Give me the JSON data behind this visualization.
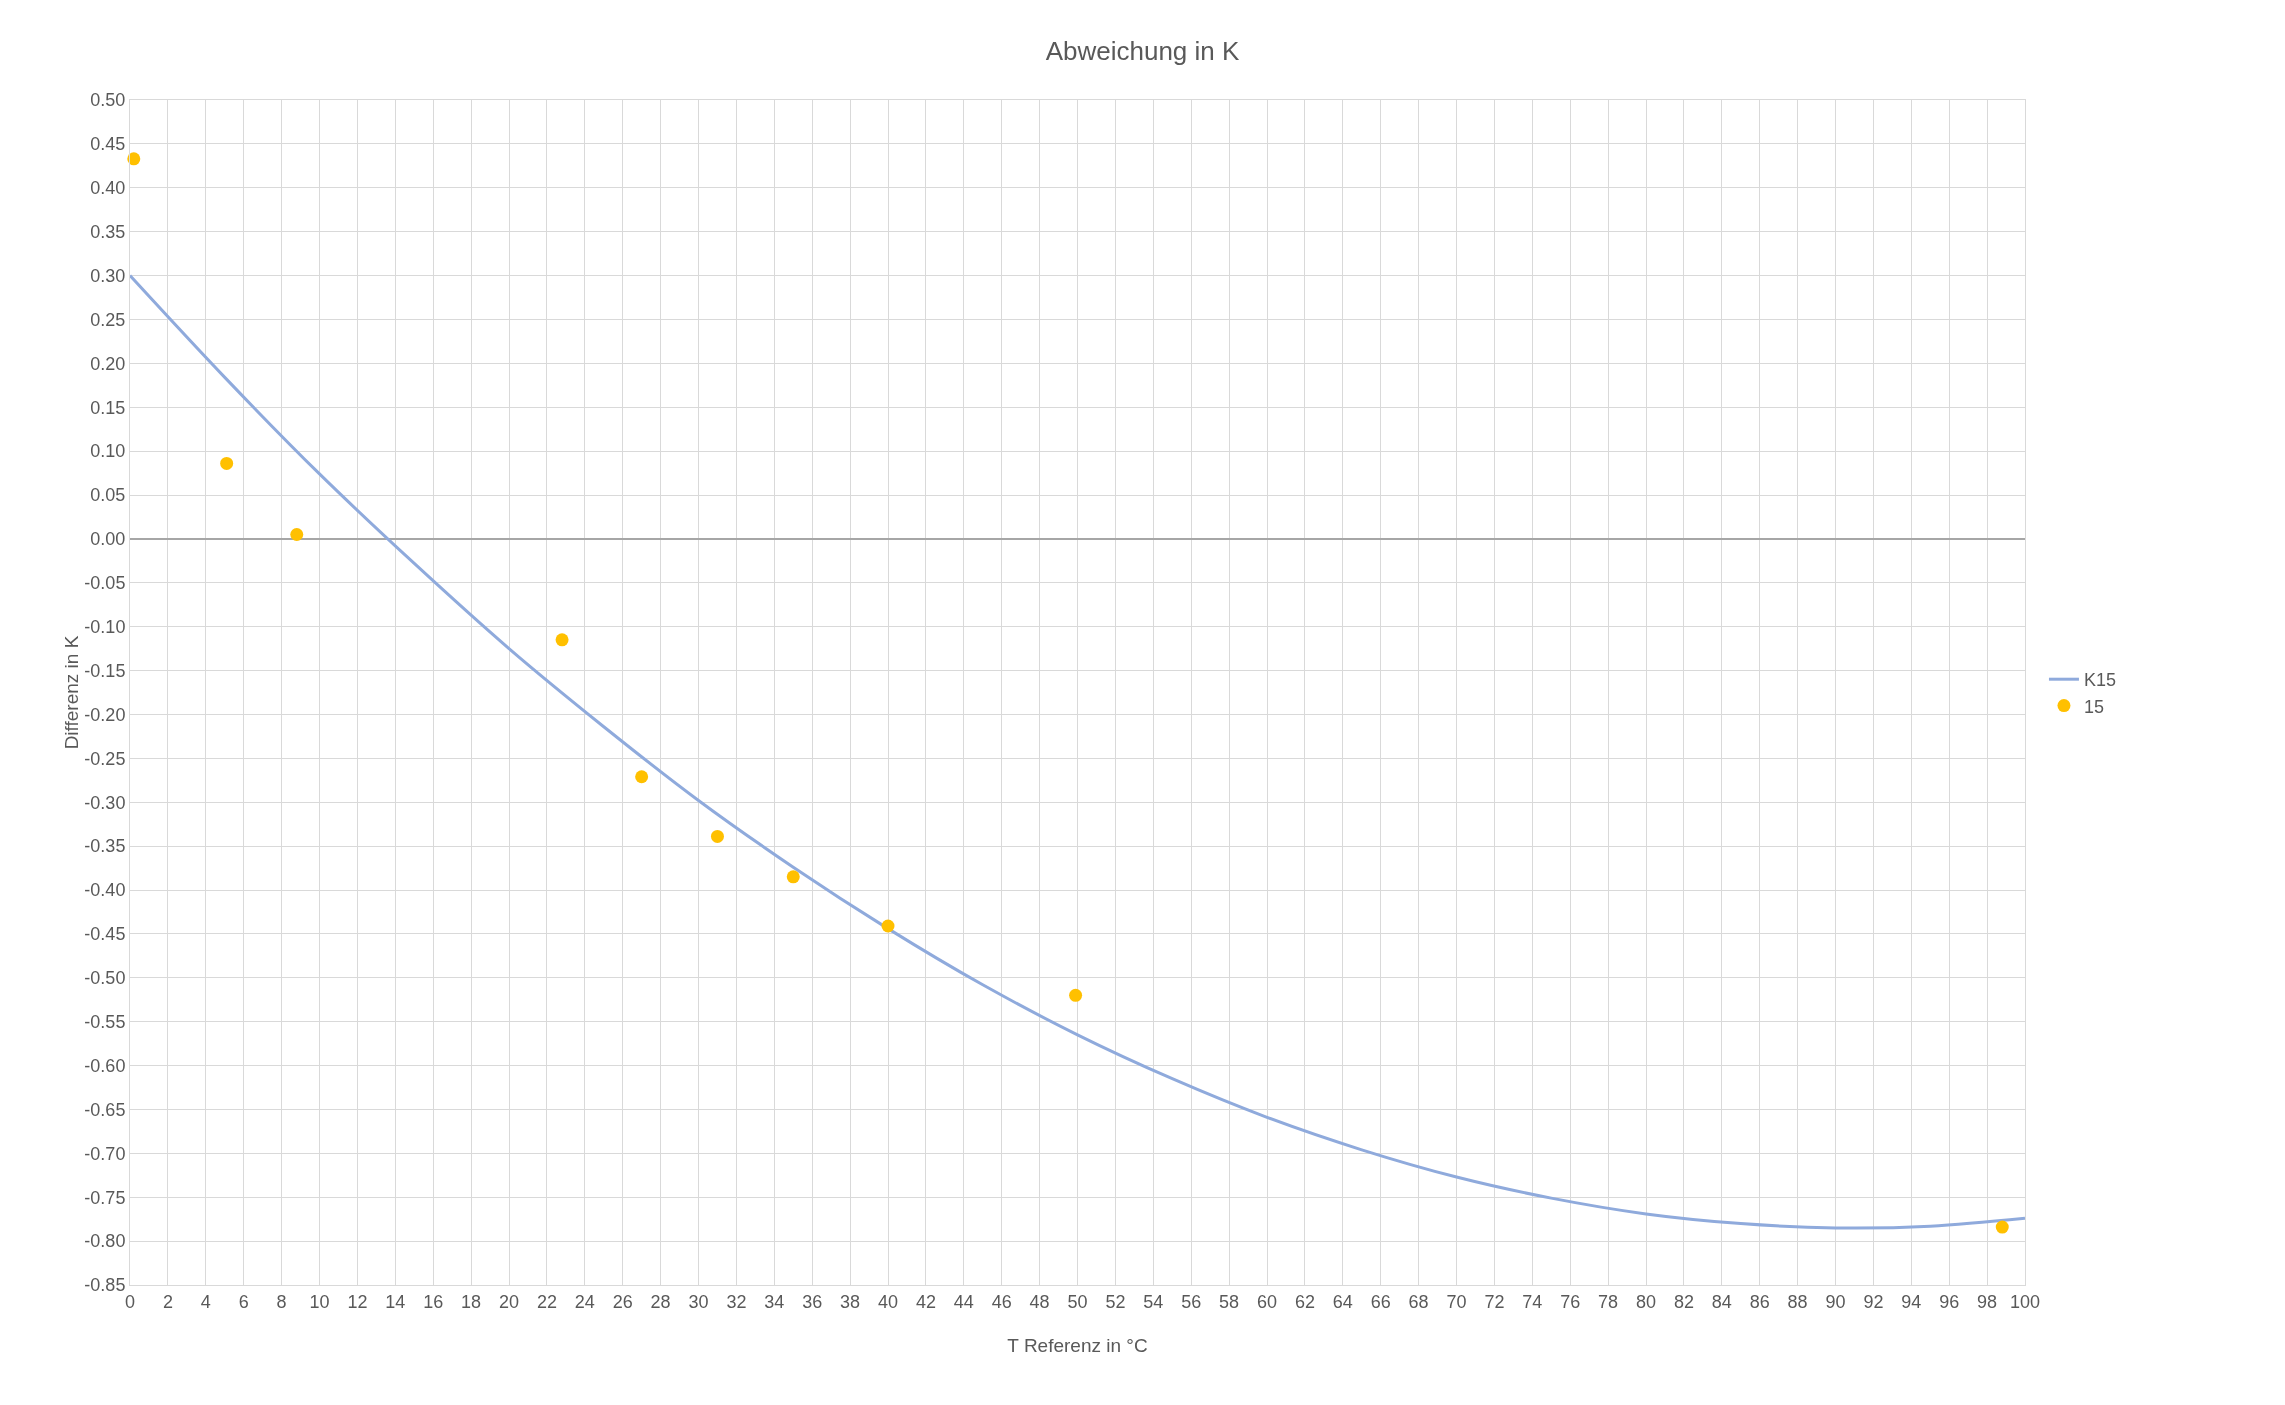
{
  "chart_data": {
    "type": "scatter",
    "title": "Abweichung in K",
    "xlabel": "T Referenz in °C",
    "ylabel": "Differenz in K",
    "series": [
      {
        "name": "K15",
        "type": "line",
        "color": "#8faadc",
        "marker": "none",
        "line_style": "solid",
        "x": [
          0,
          5,
          10,
          15,
          20,
          25,
          30,
          35,
          40,
          45,
          50,
          55,
          60,
          65,
          70,
          75,
          80,
          85,
          90,
          95,
          100
        ],
        "values": [
          0.3,
          0.184,
          0.074,
          -0.028,
          -0.125,
          -0.214,
          -0.298,
          -0.374,
          -0.444,
          -0.508,
          -0.565,
          -0.615,
          -0.659,
          -0.696,
          -0.727,
          -0.751,
          -0.769,
          -0.78,
          -0.785,
          -0.783,
          -0.774
        ]
      },
      {
        "name": "15",
        "color": "#ffc000",
        "marker": "circle",
        "x": [
          0.2,
          5.1,
          8.8,
          22.8,
          27.0,
          31.0,
          35.0,
          40.0,
          49.9,
          98.8
        ],
        "values": [
          0.433,
          0.086,
          0.005,
          -0.115,
          -0.271,
          -0.339,
          -0.385,
          -0.441,
          -0.52,
          -0.784
        ]
      }
    ],
    "xlim": [
      0,
      100
    ],
    "xticks": [
      0,
      2,
      4,
      6,
      8,
      10,
      12,
      14,
      16,
      18,
      20,
      22,
      24,
      26,
      28,
      30,
      32,
      34,
      36,
      38,
      40,
      42,
      44,
      46,
      48,
      50,
      52,
      54,
      56,
      58,
      60,
      62,
      64,
      66,
      68,
      70,
      72,
      74,
      76,
      78,
      80,
      82,
      84,
      86,
      88,
      90,
      92,
      94,
      96,
      98,
      100
    ],
    "ylim": [
      -0.85,
      0.5
    ],
    "yticks": [
      {
        "value": -0.85,
        "label": "-0.85"
      },
      {
        "value": -0.8,
        "label": "-0.80"
      },
      {
        "value": -0.75,
        "label": "-0.75"
      },
      {
        "value": -0.7,
        "label": "-0.70"
      },
      {
        "value": -0.65,
        "label": "-0.65"
      },
      {
        "value": -0.6,
        "label": "-0.60"
      },
      {
        "value": -0.55,
        "label": "-0.55"
      },
      {
        "value": -0.5,
        "label": "-0.50"
      },
      {
        "value": -0.45,
        "label": "-0.45"
      },
      {
        "value": -0.4,
        "label": "-0.40"
      },
      {
        "value": -0.35,
        "label": "-0.35"
      },
      {
        "value": -0.3,
        "label": "-0.30"
      },
      {
        "value": -0.25,
        "label": "-0.25"
      },
      {
        "value": -0.2,
        "label": "-0.20"
      },
      {
        "value": -0.15,
        "label": "-0.15"
      },
      {
        "value": -0.1,
        "label": "-0.10"
      },
      {
        "value": -0.05,
        "label": "-0.05"
      },
      {
        "value": 0,
        "label": "0.00"
      },
      {
        "value": 0.05,
        "label": "0.05"
      },
      {
        "value": 0.1,
        "label": "0.10"
      },
      {
        "value": 0.15,
        "label": "0.15"
      },
      {
        "value": 0.2,
        "label": "0.20"
      },
      {
        "value": 0.25,
        "label": "0.25"
      },
      {
        "value": 0.3,
        "label": "0.30"
      },
      {
        "value": 0.35,
        "label": "0.35"
      },
      {
        "value": 0.4,
        "label": "0.40"
      },
      {
        "value": 0.45,
        "label": "0.45"
      },
      {
        "value": 0.5,
        "label": "0.50"
      }
    ],
    "grid": true,
    "legend": "right"
  }
}
